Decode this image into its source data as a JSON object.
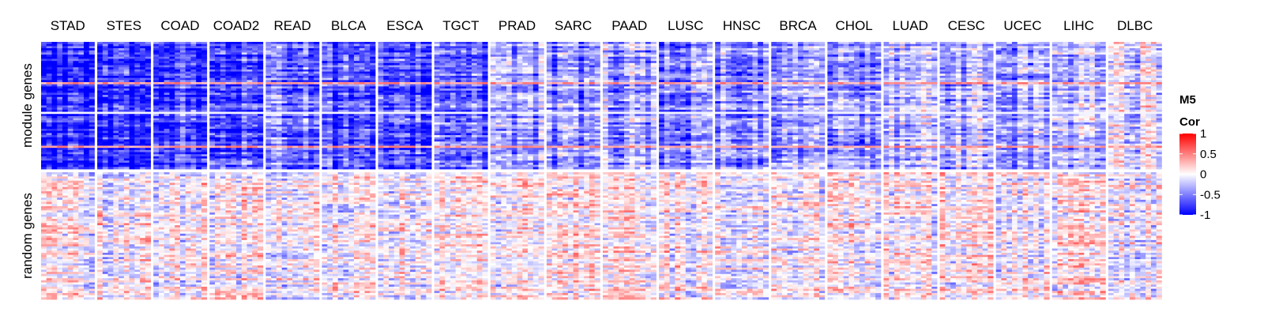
{
  "chart_data": {
    "type": "heatmap",
    "title": "",
    "columns": [
      "STAD",
      "STES",
      "COAD",
      "COAD2",
      "READ",
      "BLCA",
      "ESCA",
      "TGCT",
      "PRAD",
      "SARC",
      "PAAD",
      "LUSC",
      "HNSC",
      "BRCA",
      "CHOL",
      "LUAD",
      "CESC",
      "UCEC",
      "LIHC",
      "DLBC"
    ],
    "rows": [
      "module genes",
      "random genes"
    ],
    "approx_mean_correlation": {
      "module genes": [
        -0.85,
        -0.85,
        -0.75,
        -0.7,
        -0.5,
        -0.7,
        -0.65,
        -0.6,
        -0.45,
        -0.5,
        -0.4,
        -0.45,
        -0.45,
        -0.4,
        -0.45,
        -0.3,
        -0.3,
        -0.4,
        -0.3,
        -0.15
      ],
      "random genes": [
        0,
        0,
        0,
        0,
        0,
        0,
        0,
        0.05,
        0,
        0.05,
        0,
        0,
        0,
        0,
        0,
        0,
        0,
        0,
        0,
        0
      ]
    },
    "color_scale": {
      "domain": [
        -1,
        0,
        1
      ],
      "colors": [
        "#0000ff",
        "#ffffff",
        "#ff0000"
      ]
    },
    "legend": {
      "title_line1": "M5",
      "title_line2": "Cor",
      "ticks": [
        "1",
        "0.5",
        "0",
        "-0.5",
        "-1"
      ],
      "tick_values": [
        1,
        0.5,
        0,
        -0.5,
        -1
      ]
    }
  }
}
